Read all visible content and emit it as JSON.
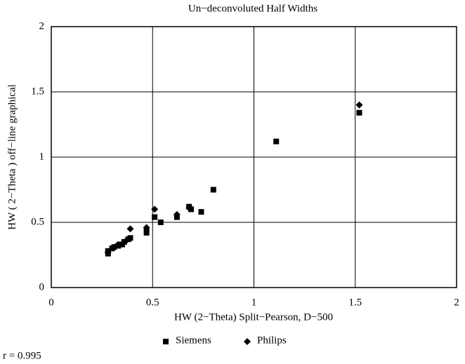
{
  "chart_data": {
    "type": "scatter",
    "title": "Un−deconvoluted Half Widths",
    "x_label": "HW (2−Theta) Split−Pearson, D−500",
    "y_label": "HW ( 2−Theta ) off−line graphical",
    "annotation": "r = 0.995",
    "xlim": [
      0,
      2
    ],
    "ylim": [
      0,
      2
    ],
    "xticks": [
      0,
      0.5,
      1,
      1.5,
      2
    ],
    "yticks": [
      0,
      0.5,
      1,
      1.5,
      2
    ],
    "grid": true,
    "legend": "bottom",
    "series": [
      {
        "name": "Siemens",
        "color": "#000000",
        "marker": "square",
        "x": [
          0.28,
          0.28,
          0.3,
          0.31,
          0.33,
          0.34,
          0.35,
          0.36,
          0.38,
          0.39,
          0.47,
          0.47,
          0.51,
          0.54,
          0.62,
          0.68,
          0.69,
          0.74,
          0.8,
          1.11,
          1.52
        ],
        "values": [
          0.26,
          0.28,
          0.3,
          0.31,
          0.32,
          0.33,
          0.33,
          0.35,
          0.37,
          0.38,
          0.42,
          0.44,
          0.54,
          0.5,
          0.54,
          0.62,
          0.6,
          0.58,
          0.75,
          1.12,
          1.34
        ]
      },
      {
        "name": "Philips",
        "color": "#000000",
        "marker": "diamond",
        "x": [
          0.28,
          0.31,
          0.33,
          0.37,
          0.39,
          0.47,
          0.51,
          0.62,
          0.68,
          1.52
        ],
        "values": [
          0.27,
          0.31,
          0.33,
          0.36,
          0.45,
          0.46,
          0.6,
          0.56,
          0.61,
          1.4
        ]
      }
    ]
  }
}
